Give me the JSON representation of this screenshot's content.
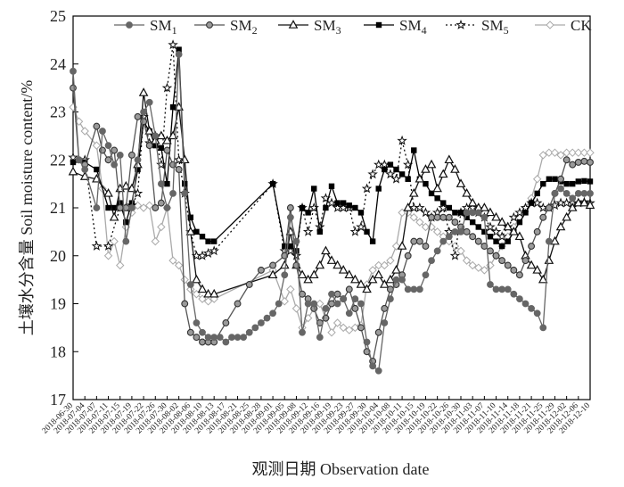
{
  "chart_data": {
    "type": "line",
    "xlabel": "观测日期 Observation date",
    "ylabel": "土壤水分含量 Soil moisture content/%",
    "ylim": [
      17,
      25
    ],
    "y_ticks": [
      "17",
      "18",
      "19",
      "20",
      "21",
      "22",
      "23",
      "24",
      "25"
    ],
    "x_tick_labels": [
      "2018-06-30",
      "2018-07-04",
      "2018-07-07",
      "2018-07-11",
      "2018-07-15",
      "2018-07-19",
      "2018-07-22",
      "2018-07-26",
      "2018-07-30",
      "2018-08-02",
      "2018-08-06",
      "2018-08-10",
      "2018-08-13",
      "2018-08-17",
      "2018-08-21",
      "2018-08-25",
      "2018-08-28",
      "2018-09-01",
      "2018-09-05",
      "2018-09-08",
      "2018-09-12",
      "2018-09-16",
      "2018-09-19",
      "2018-09-23",
      "2018-09-27",
      "2018-09-30",
      "2018-10-04",
      "2018-10-08",
      "2018-10-11",
      "2018-10-15",
      "2018-10-19",
      "2018-10-22",
      "2018-10-26",
      "2018-10-30",
      "2018-11-03",
      "2018-11-07",
      "2018-11-10",
      "2018-11-14",
      "2018-11-18",
      "2018-11-21",
      "2018-11-25",
      "2018-11-29",
      "2018-12-02",
      "2018-12-06",
      "2018-12-10"
    ],
    "legend_position": "top",
    "grid": false,
    "series": [
      {
        "name": "SM",
        "sub": "1",
        "color": "#666666",
        "marker": "circle-filled",
        "dash": "",
        "x": [
          0,
          1,
          2,
          4,
          5,
          6,
          7,
          8,
          9,
          10,
          11,
          12,
          13,
          14,
          15,
          16,
          17,
          18,
          19,
          20,
          21,
          22,
          23,
          24,
          25,
          26,
          27,
          28,
          29,
          30,
          31,
          32,
          33,
          34,
          35,
          36,
          37,
          38,
          39,
          40,
          41,
          42,
          43,
          44,
          45,
          46,
          47,
          48,
          49,
          50,
          51,
          52,
          53,
          54,
          55,
          56,
          57,
          58,
          59,
          60,
          61,
          62,
          63,
          64,
          65,
          66,
          67,
          68,
          69,
          70,
          71,
          72,
          73,
          74,
          75,
          76,
          77,
          78,
          79,
          80,
          81,
          82,
          83,
          84,
          85,
          86,
          87,
          88
        ],
        "y": [
          23.85,
          22.0,
          21.8,
          21.0,
          22.6,
          22.3,
          21.9,
          22.1,
          20.3,
          21.0,
          22.0,
          23.0,
          23.2,
          22.5,
          21.5,
          21.0,
          21.3,
          24.2,
          21.3,
          19.4,
          18.6,
          18.4,
          18.3,
          18.3,
          18.3,
          18.2,
          18.3,
          18.3,
          18.3,
          18.4,
          18.5,
          18.6,
          18.7,
          18.8,
          19.0,
          19.6,
          20.8,
          20.3,
          18.4,
          19.0,
          19.0,
          18.3,
          18.9,
          19.2,
          19.0,
          19.1,
          18.8,
          19.1,
          19.0,
          18.2,
          17.7,
          17.6,
          18.6,
          19.1,
          19.5,
          19.5,
          19.3,
          19.3,
          19.3,
          19.6,
          19.9,
          20.1,
          20.3,
          20.4,
          20.5,
          20.5,
          20.9,
          20.9,
          20.9,
          20.8,
          19.4,
          19.3,
          19.3,
          19.3,
          19.2,
          19.1,
          19.0,
          18.9,
          18.8,
          18.5,
          20.3,
          21.3,
          21.4,
          21.3,
          21.2,
          21.3,
          21.3,
          21.3
        ]
      },
      {
        "name": "SM",
        "sub": "2",
        "color": "#555555",
        "marker": "circle-gray",
        "dash": "",
        "x": [
          0,
          1,
          2,
          4,
          5,
          6,
          7,
          8,
          9,
          10,
          11,
          12,
          13,
          14,
          15,
          16,
          17,
          18,
          19,
          20,
          21,
          22,
          23,
          24,
          26,
          28,
          30,
          32,
          34,
          36,
          37,
          38,
          39,
          40,
          41,
          42,
          43,
          44,
          45,
          46,
          47,
          48,
          49,
          50,
          51,
          52,
          53,
          54,
          55,
          56,
          57,
          58,
          59,
          60,
          61,
          62,
          63,
          64,
          65,
          66,
          67,
          68,
          69,
          70,
          71,
          72,
          73,
          74,
          75,
          76,
          77,
          78,
          79,
          80,
          81,
          82,
          83,
          84,
          85,
          86,
          87,
          88
        ],
        "y": [
          23.5,
          22.0,
          21.9,
          22.7,
          22.2,
          22.0,
          22.2,
          21.0,
          21.0,
          22.1,
          22.9,
          22.8,
          22.3,
          21.0,
          21.1,
          22.2,
          21.9,
          21.8,
          19.0,
          18.4,
          18.3,
          18.2,
          18.2,
          18.2,
          18.6,
          19.0,
          19.4,
          19.7,
          19.8,
          20.0,
          21.0,
          19.8,
          19.2,
          19.1,
          18.9,
          18.6,
          18.7,
          19.0,
          19.2,
          19.1,
          19.3,
          18.9,
          18.5,
          18.0,
          17.8,
          18.4,
          18.9,
          19.3,
          19.4,
          19.6,
          20.0,
          20.3,
          20.3,
          20.2,
          20.8,
          20.8,
          20.8,
          20.8,
          20.7,
          20.6,
          20.5,
          20.4,
          20.3,
          20.2,
          20.1,
          20.0,
          19.9,
          19.8,
          19.7,
          19.6,
          19.9,
          20.2,
          20.5,
          20.8,
          21.0,
          21.3,
          21.6,
          22.0,
          21.9,
          21.95,
          21.97,
          21.95
        ]
      },
      {
        "name": "SM",
        "sub": "3",
        "color": "#111111",
        "marker": "triangle-open",
        "dash": "",
        "x": [
          0,
          2,
          4,
          6,
          7,
          8,
          9,
          10,
          11,
          12,
          13,
          14,
          15,
          16,
          17,
          18,
          19,
          20,
          21,
          22,
          23,
          24,
          34,
          36,
          37,
          38,
          39,
          40,
          41,
          42,
          43,
          44,
          45,
          46,
          47,
          48,
          49,
          50,
          51,
          52,
          53,
          54,
          55,
          56,
          57,
          58,
          59,
          60,
          61,
          62,
          63,
          64,
          65,
          66,
          67,
          68,
          69,
          70,
          71,
          72,
          73,
          74,
          75,
          76,
          77,
          78,
          79,
          80,
          81,
          82,
          83,
          84,
          85,
          86,
          87,
          88
        ],
        "y": [
          21.75,
          21.65,
          21.6,
          21.3,
          20.8,
          21.4,
          21.45,
          21.4,
          21.9,
          23.4,
          22.6,
          22.4,
          22.5,
          22.4,
          22.5,
          23.1,
          22.0,
          20.5,
          19.5,
          19.3,
          19.2,
          19.2,
          19.6,
          19.8,
          20.5,
          19.8,
          19.6,
          19.5,
          19.6,
          19.8,
          20.1,
          19.9,
          19.8,
          19.7,
          19.6,
          19.5,
          19.4,
          19.3,
          19.5,
          19.6,
          19.4,
          19.5,
          19.7,
          20.2,
          21.0,
          21.3,
          21.6,
          21.8,
          21.9,
          21.4,
          21.7,
          22.0,
          21.8,
          21.5,
          21.3,
          21.1,
          21.0,
          21.0,
          20.9,
          20.8,
          20.7,
          20.6,
          20.5,
          20.4,
          20.0,
          19.8,
          19.7,
          19.5,
          19.9,
          20.3,
          20.6,
          20.8,
          21.0,
          21.1,
          21.1,
          21.05
        ]
      },
      {
        "name": "SM",
        "sub": "4",
        "color": "#000000",
        "marker": "square-filled",
        "dash": "",
        "x": [
          0,
          2,
          4,
          6,
          7,
          8,
          9,
          10,
          11,
          12,
          13,
          14,
          15,
          16,
          17,
          18,
          19,
          20,
          21,
          22,
          23,
          24,
          34,
          36,
          37,
          38,
          39,
          40,
          41,
          42,
          43,
          44,
          45,
          46,
          47,
          48,
          49,
          50,
          51,
          52,
          53,
          54,
          55,
          56,
          57,
          58,
          59,
          60,
          61,
          62,
          63,
          64,
          65,
          66,
          67,
          68,
          69,
          70,
          71,
          72,
          73,
          74,
          75,
          76,
          77,
          78,
          79,
          80,
          81,
          82,
          83,
          84,
          85,
          86,
          87,
          88
        ],
        "y": [
          21.95,
          21.95,
          21.8,
          21.0,
          21.0,
          21.1,
          20.7,
          21.1,
          21.8,
          22.8,
          22.6,
          22.3,
          22.25,
          21.5,
          23.1,
          24.3,
          21.5,
          20.8,
          20.5,
          20.4,
          20.3,
          20.3,
          21.5,
          20.2,
          20.2,
          20.1,
          21.0,
          20.9,
          21.4,
          20.5,
          21.0,
          21.45,
          21.1,
          21.1,
          21.05,
          21.0,
          20.9,
          20.5,
          20.3,
          21.4,
          21.8,
          21.9,
          21.8,
          21.7,
          21.6,
          22.2,
          21.6,
          21.5,
          21.3,
          21.2,
          21.1,
          21.0,
          20.9,
          20.9,
          20.8,
          20.7,
          20.6,
          20.5,
          20.4,
          20.3,
          20.2,
          20.3,
          20.5,
          20.7,
          20.9,
          21.1,
          21.3,
          21.5,
          21.6,
          21.6,
          21.55,
          21.5,
          21.5,
          21.55,
          21.56,
          21.55
        ]
      },
      {
        "name": "SM",
        "sub": "5",
        "color": "#111111",
        "marker": "star",
        "dash": "2,3",
        "x": [
          0,
          2,
          4,
          6,
          8,
          9,
          10,
          11,
          12,
          13,
          14,
          15,
          16,
          17,
          18,
          19,
          20,
          21,
          22,
          23,
          24,
          34,
          36,
          37,
          38,
          39,
          40,
          41,
          42,
          43,
          44,
          45,
          46,
          47,
          48,
          49,
          50,
          51,
          52,
          53,
          54,
          55,
          56,
          57,
          58,
          59,
          60,
          61,
          62,
          63,
          64,
          65,
          66,
          67,
          68,
          69,
          70,
          71,
          72,
          73,
          74,
          75,
          76,
          77,
          78,
          79,
          80,
          81,
          82,
          83,
          84,
          85,
          86,
          87,
          88
        ],
        "y": [
          22.05,
          22.0,
          20.2,
          20.2,
          21.0,
          21.0,
          21.05,
          21.3,
          22.9,
          22.35,
          22.5,
          21.9,
          23.5,
          24.4,
          22.0,
          21.3,
          20.5,
          20.0,
          20.0,
          20.05,
          20.1,
          21.5,
          20.1,
          20.1,
          20.0,
          21.0,
          20.5,
          21.0,
          20.6,
          21.2,
          21.1,
          21.0,
          21.0,
          21.0,
          20.5,
          20.6,
          21.4,
          21.7,
          21.9,
          21.9,
          21.7,
          21.6,
          22.4,
          21.9,
          21.0,
          21.0,
          20.9,
          20.8,
          20.9,
          21.0,
          20.5,
          20.0,
          20.9,
          21.0,
          21.0,
          20.9,
          20.8,
          20.6,
          20.5,
          20.4,
          20.6,
          20.8,
          20.9,
          21.0,
          21.1,
          21.1,
          21.0,
          21.0,
          21.05,
          21.1,
          21.1,
          21.1,
          21.1,
          21.12,
          21.1
        ]
      },
      {
        "name": "CK",
        "sub": "",
        "color": "#aaaaaa",
        "marker": "diamond-open",
        "dash": "",
        "x": [
          0,
          1,
          2,
          4,
          5,
          6,
          7,
          8,
          9,
          10,
          11,
          12,
          13,
          14,
          15,
          16,
          17,
          18,
          19,
          20,
          21,
          22,
          23,
          24,
          34,
          36,
          37,
          38,
          39,
          40,
          41,
          42,
          43,
          44,
          45,
          46,
          47,
          48,
          49,
          50,
          51,
          52,
          53,
          54,
          55,
          56,
          57,
          58,
          59,
          60,
          61,
          62,
          63,
          64,
          65,
          66,
          67,
          68,
          69,
          70,
          71,
          72,
          73,
          74,
          75,
          76,
          77,
          78,
          79,
          80,
          81,
          82,
          83,
          84,
          85,
          86,
          87,
          88
        ],
        "y": [
          23.1,
          22.8,
          22.6,
          22.3,
          21.4,
          20.0,
          20.3,
          19.8,
          20.6,
          20.9,
          21.05,
          21.0,
          21.05,
          20.3,
          20.6,
          21.0,
          19.9,
          19.8,
          19.5,
          19.3,
          19.2,
          19.1,
          19.05,
          19.1,
          19.7,
          19.05,
          19.3,
          18.9,
          18.5,
          18.7,
          18.9,
          19.0,
          18.7,
          18.4,
          18.6,
          18.5,
          18.45,
          18.5,
          18.55,
          19.4,
          19.7,
          19.8,
          19.8,
          19.9,
          20.2,
          20.9,
          20.9,
          20.8,
          20.7,
          20.6,
          20.6,
          20.5,
          20.4,
          20.3,
          20.2,
          20.1,
          19.9,
          19.8,
          19.75,
          19.7,
          19.8,
          20.0,
          20.2,
          20.4,
          20.6,
          20.8,
          21.0,
          21.2,
          21.6,
          22.1,
          22.15,
          22.15,
          22.1,
          22.15,
          22.15,
          22.15,
          22.15,
          22.15
        ]
      }
    ]
  }
}
